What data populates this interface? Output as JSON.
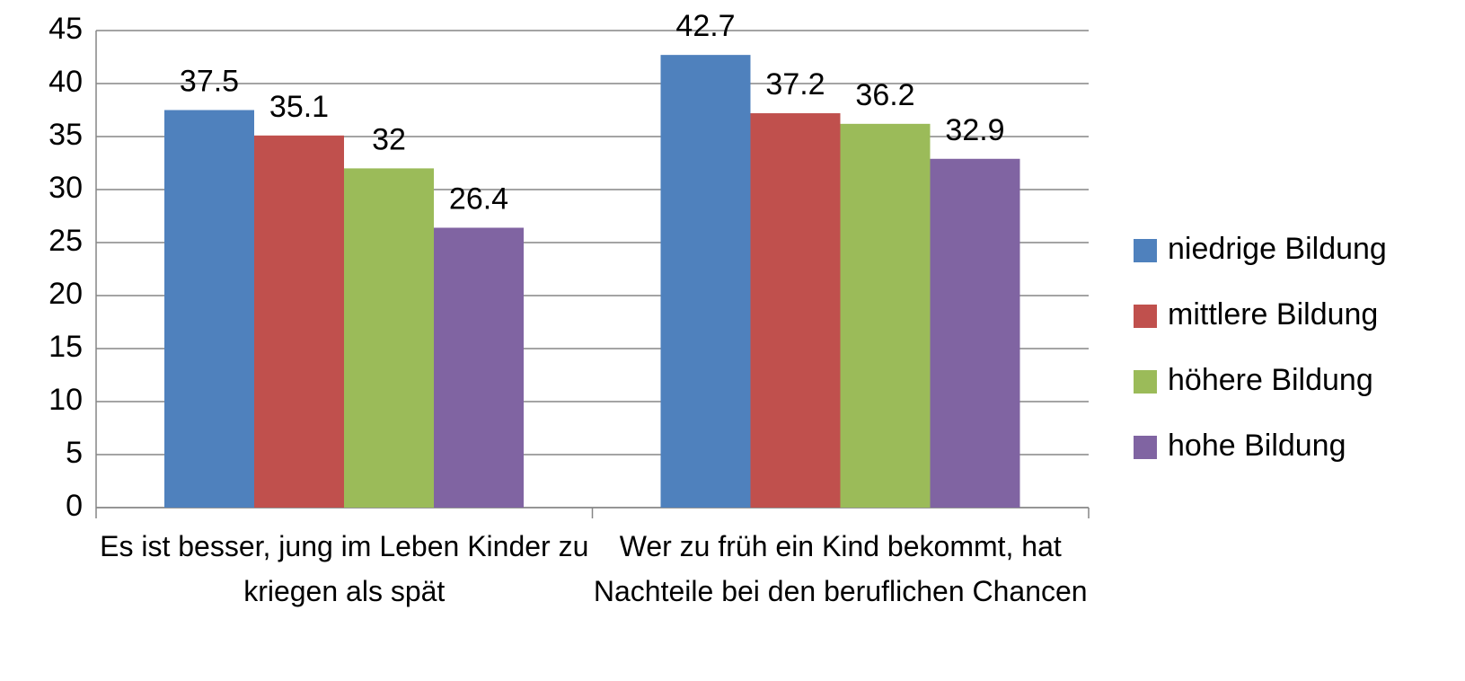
{
  "chart_data": {
    "type": "bar",
    "categories": [
      "Es ist besser, jung im Leben Kinder zu kriegen als spät",
      "Wer zu früh ein Kind bekommt, hat Nachteile bei den beruflichen Chancen"
    ],
    "series": [
      {
        "name": "niedrige Bildung",
        "color": "#4f81bd",
        "values": [
          37.5,
          42.7
        ]
      },
      {
        "name": "mittlere Bildung",
        "color": "#c0504d",
        "values": [
          35.1,
          37.2
        ]
      },
      {
        "name": "höhere Bildung",
        "color": "#9bbb59",
        "values": [
          32,
          36.2
        ]
      },
      {
        "name": "hohe Bildung",
        "color": "#8064a2",
        "values": [
          26.4,
          32.9
        ]
      }
    ],
    "ylim": [
      0,
      45
    ],
    "yticks": [
      0,
      5,
      10,
      15,
      20,
      25,
      30,
      35,
      40,
      45
    ],
    "grid": true,
    "legend": "right"
  }
}
